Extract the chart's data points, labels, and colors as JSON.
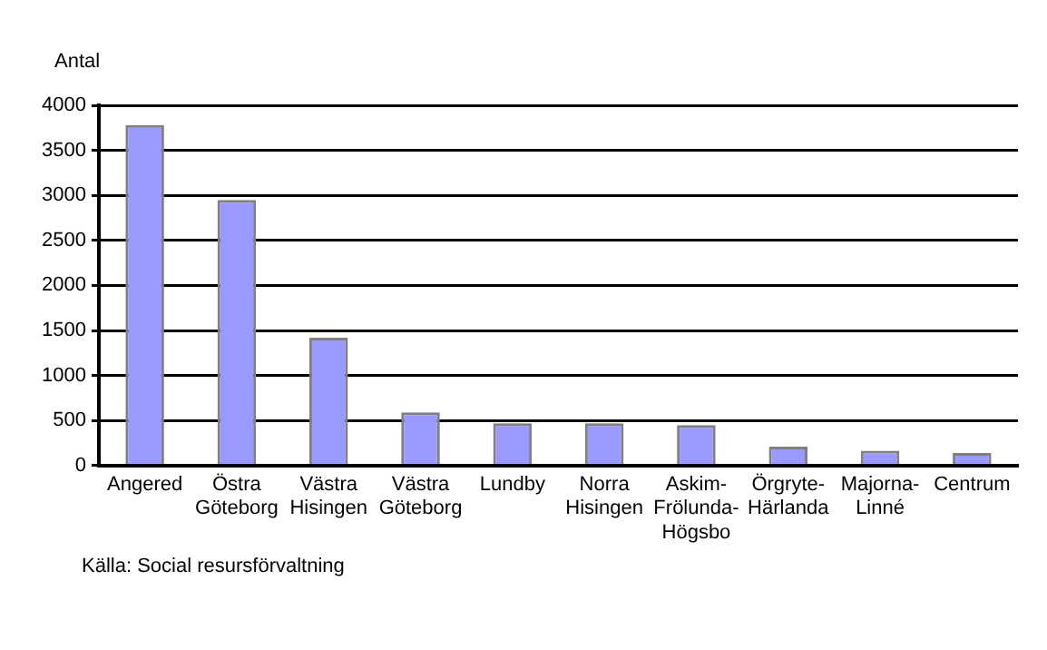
{
  "chart_data": {
    "type": "bar",
    "ylabel": "Antal",
    "categories": [
      "Angered",
      "Östra\nGöteborg",
      "Västra\nHisingen",
      "Västra\nGöteborg",
      "Lundby",
      "Norra\nHisingen",
      "Askim-\nFrölunda-\nHögsbo",
      "Örgryte-\nHärlanda",
      "Majorna-\nLinné",
      "Centrum"
    ],
    "values": [
      3780,
      2950,
      1420,
      590,
      470,
      470,
      450,
      210,
      165,
      140
    ],
    "color": "#9999ff",
    "ylim": [
      0,
      4000
    ],
    "yticks": [
      0,
      500,
      1000,
      1500,
      2000,
      2500,
      3000,
      3500,
      4000
    ],
    "grid": "y",
    "annotations": [
      "Källa:  Social resursförvaltning"
    ]
  }
}
